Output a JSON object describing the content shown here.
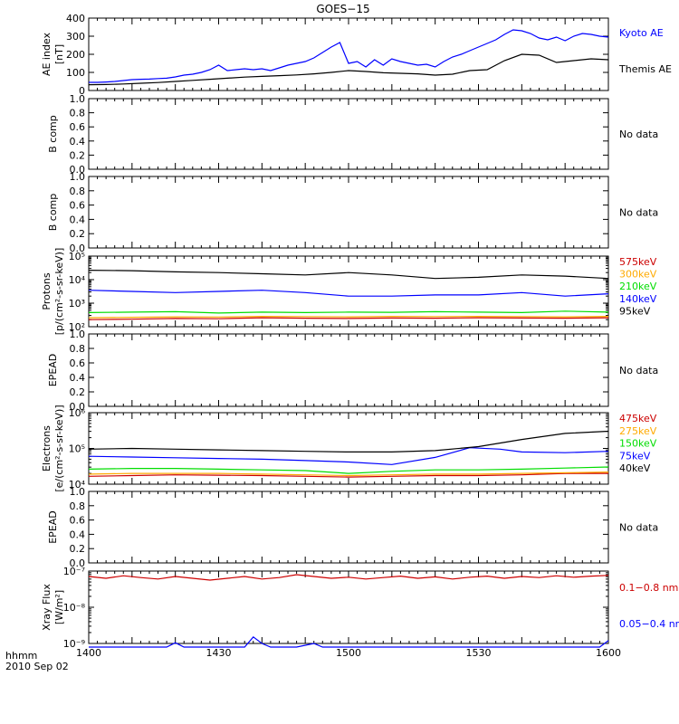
{
  "title": "GOES−15",
  "xaxis": {
    "label_unit": "hhmm",
    "date": "2010 Sep 02",
    "range": [
      0,
      120
    ],
    "ticks": [
      {
        "v": 0,
        "label": "1400"
      },
      {
        "v": 30,
        "label": "1430"
      },
      {
        "v": 60,
        "label": "1500"
      },
      {
        "v": 90,
        "label": "1530"
      },
      {
        "v": 120,
        "label": "1600"
      }
    ]
  },
  "chart_data": [
    {
      "type": "line",
      "ylabel": [
        "AE index",
        "[nT]"
      ],
      "ylim": [
        0,
        400
      ],
      "yticks": [
        "0",
        "100",
        "200",
        "300",
        "400"
      ],
      "series": [
        {
          "name": "Kyoto AE",
          "color": "#0000ff",
          "x": [
            0,
            2,
            4,
            6,
            8,
            10,
            12,
            14,
            16,
            18,
            20,
            22,
            24,
            26,
            28,
            30,
            32,
            34,
            36,
            38,
            40,
            42,
            44,
            46,
            48,
            50,
            52,
            54,
            56,
            58,
            60,
            62,
            64,
            66,
            68,
            70,
            72,
            74,
            76,
            78,
            80,
            82,
            84,
            86,
            88,
            90,
            92,
            94,
            96,
            98,
            100,
            102,
            104,
            106,
            108,
            110,
            112,
            114,
            116,
            118,
            120
          ],
          "y": [
            45,
            45,
            47,
            50,
            55,
            60,
            62,
            63,
            66,
            68,
            75,
            85,
            90,
            100,
            115,
            140,
            110,
            115,
            120,
            115,
            120,
            110,
            125,
            140,
            150,
            160,
            180,
            210,
            240,
            265,
            150,
            160,
            130,
            170,
            140,
            175,
            160,
            150,
            140,
            145,
            130,
            160,
            185,
            200,
            220,
            240,
            260,
            280,
            310,
            335,
            330,
            315,
            290,
            280,
            295,
            275,
            300,
            315,
            310,
            300,
            295
          ]
        },
        {
          "name": "Themis AE",
          "color": "#000000",
          "x": [
            0,
            4,
            8,
            12,
            16,
            20,
            24,
            28,
            32,
            36,
            40,
            44,
            48,
            52,
            56,
            60,
            64,
            68,
            72,
            76,
            80,
            84,
            88,
            92,
            96,
            100,
            104,
            108,
            112,
            116,
            120
          ],
          "y": [
            32,
            33,
            36,
            40,
            44,
            50,
            56,
            62,
            68,
            74,
            78,
            82,
            86,
            92,
            100,
            110,
            105,
            98,
            95,
            92,
            85,
            90,
            110,
            115,
            165,
            200,
            195,
            155,
            165,
            175,
            170
          ]
        }
      ]
    },
    {
      "type": "line",
      "ylabel": [
        "B comp"
      ],
      "ylim": [
        0,
        1
      ],
      "yticks": [
        "0.0",
        "0.2",
        "0.4",
        "0.6",
        "0.8",
        "1.0"
      ],
      "note": "No data",
      "series": []
    },
    {
      "type": "line",
      "ylabel": [
        "B comp"
      ],
      "ylim": [
        0,
        1
      ],
      "yticks": [
        "0.0",
        "0.2",
        "0.4",
        "0.6",
        "0.8",
        "1.0"
      ],
      "note": "No data",
      "series": []
    },
    {
      "type": "line",
      "scale": "log",
      "ylabel": [
        "Protons",
        "[p/(cm²-s-sr-keV)]"
      ],
      "ylim_exp": [
        2,
        5
      ],
      "yticks": [
        "10²",
        "10³",
        "10⁴",
        "10⁵"
      ],
      "series": [
        {
          "name": "575keV",
          "color": "#cc0000",
          "x": [
            0,
            10,
            20,
            30,
            40,
            50,
            60,
            70,
            80,
            90,
            100,
            110,
            120
          ],
          "y": [
            2.3,
            2.32,
            2.35,
            2.34,
            2.38,
            2.36,
            2.35,
            2.37,
            2.36,
            2.38,
            2.37,
            2.36,
            2.38
          ]
        },
        {
          "name": "300keV",
          "color": "#ffaa00",
          "x": [
            0,
            10,
            20,
            30,
            40,
            50,
            60,
            70,
            80,
            90,
            100,
            110,
            120
          ],
          "y": [
            2.38,
            2.4,
            2.42,
            2.41,
            2.44,
            2.43,
            2.42,
            2.44,
            2.43,
            2.44,
            2.43,
            2.42,
            2.44
          ]
        },
        {
          "name": "210keV",
          "color": "#00dd00",
          "x": [
            0,
            10,
            20,
            30,
            40,
            50,
            60,
            70,
            80,
            90,
            100,
            110,
            120
          ],
          "y": [
            2.6,
            2.62,
            2.64,
            2.58,
            2.62,
            2.6,
            2.62,
            2.61,
            2.64,
            2.62,
            2.6,
            2.66,
            2.62
          ]
        },
        {
          "name": "140keV",
          "color": "#0000ff",
          "x": [
            0,
            10,
            20,
            30,
            40,
            50,
            60,
            70,
            80,
            90,
            100,
            110,
            120
          ],
          "y": [
            3.55,
            3.5,
            3.45,
            3.5,
            3.55,
            3.45,
            3.3,
            3.3,
            3.35,
            3.35,
            3.45,
            3.3,
            3.4
          ]
        },
        {
          "name": "95keV",
          "color": "#000000",
          "x": [
            0,
            10,
            20,
            30,
            40,
            50,
            60,
            70,
            80,
            90,
            100,
            110,
            120
          ],
          "y": [
            4.4,
            4.38,
            4.33,
            4.3,
            4.25,
            4.2,
            4.3,
            4.2,
            4.05,
            4.1,
            4.2,
            4.15,
            4.05
          ]
        }
      ]
    },
    {
      "type": "line",
      "ylabel": [
        "EPEAD"
      ],
      "ylim": [
        0,
        1
      ],
      "yticks": [
        "0.0",
        "0.2",
        "0.4",
        "0.6",
        "0.8",
        "1.0"
      ],
      "note": "No data",
      "series": []
    },
    {
      "type": "line",
      "scale": "log",
      "ylabel": [
        "Electrons",
        "[e/(cm²-s-sr-keV)]"
      ],
      "ylim_exp": [
        4,
        6
      ],
      "yticks": [
        "10⁴",
        "10⁵",
        "10⁶"
      ],
      "series": [
        {
          "name": "475keV",
          "color": "#cc0000",
          "x": [
            0,
            10,
            20,
            30,
            40,
            50,
            60,
            70,
            80,
            90,
            100,
            110,
            120
          ],
          "y": [
            4.22,
            4.24,
            4.26,
            4.25,
            4.24,
            4.22,
            4.2,
            4.22,
            4.24,
            4.24,
            4.26,
            4.3,
            4.3
          ]
        },
        {
          "name": "275keV",
          "color": "#ffaa00",
          "x": [
            0,
            10,
            20,
            30,
            40,
            50,
            60,
            70,
            80,
            90,
            100,
            110,
            120
          ],
          "y": [
            4.28,
            4.3,
            4.3,
            4.3,
            4.28,
            4.26,
            4.24,
            4.26,
            4.28,
            4.28,
            4.3,
            4.32,
            4.34
          ]
        },
        {
          "name": "150keV",
          "color": "#00dd00",
          "x": [
            0,
            10,
            20,
            30,
            40,
            50,
            60,
            70,
            80,
            90,
            100,
            110,
            120
          ],
          "y": [
            4.42,
            4.44,
            4.44,
            4.42,
            4.4,
            4.38,
            4.3,
            4.36,
            4.4,
            4.4,
            4.42,
            4.45,
            4.48
          ]
        },
        {
          "name": "75keV",
          "color": "#0000ff",
          "x": [
            0,
            10,
            20,
            30,
            40,
            50,
            60,
            70,
            80,
            88,
            95,
            100,
            110,
            120
          ],
          "y": [
            4.78,
            4.76,
            4.74,
            4.72,
            4.7,
            4.66,
            4.62,
            4.55,
            4.75,
            5.02,
            4.98,
            4.9,
            4.88,
            4.92
          ]
        },
        {
          "name": "40keV",
          "color": "#000000",
          "x": [
            0,
            10,
            20,
            30,
            40,
            50,
            60,
            70,
            80,
            90,
            100,
            110,
            120
          ],
          "y": [
            4.98,
            5.0,
            4.98,
            4.96,
            4.94,
            4.92,
            4.9,
            4.9,
            4.94,
            5.05,
            5.25,
            5.42,
            5.48
          ]
        }
      ]
    },
    {
      "type": "line",
      "ylabel": [
        "EPEAD"
      ],
      "ylim": [
        0,
        1
      ],
      "yticks": [
        "0.0",
        "0.2",
        "0.4",
        "0.6",
        "0.8",
        "1.0"
      ],
      "note": "No data",
      "series": []
    },
    {
      "type": "line",
      "scale": "log",
      "ylabel": [
        "Xray Flux",
        "[W/m²]"
      ],
      "ylim_exp": [
        -9,
        -7
      ],
      "yticks": [
        "10⁻⁹",
        "10⁻⁸",
        "10⁻⁷"
      ],
      "series": [
        {
          "name": "0.1−0.8 nm",
          "color": "#cc0000",
          "x": [
            0,
            4,
            8,
            12,
            16,
            20,
            24,
            28,
            32,
            36,
            40,
            44,
            48,
            52,
            56,
            60,
            64,
            68,
            72,
            76,
            80,
            84,
            88,
            92,
            96,
            100,
            104,
            108,
            112,
            116,
            120
          ],
          "y": [
            -7.15,
            -7.2,
            -7.13,
            -7.18,
            -7.22,
            -7.15,
            -7.2,
            -7.25,
            -7.2,
            -7.15,
            -7.22,
            -7.18,
            -7.1,
            -7.15,
            -7.2,
            -7.17,
            -7.22,
            -7.18,
            -7.14,
            -7.2,
            -7.16,
            -7.22,
            -7.17,
            -7.14,
            -7.2,
            -7.15,
            -7.18,
            -7.13,
            -7.17,
            -7.14,
            -7.12
          ]
        },
        {
          "name": "0.05−0.4 nm",
          "color": "#0000ff",
          "x": [
            0,
            10,
            18,
            20,
            22,
            30,
            36,
            38,
            40,
            42,
            48,
            52,
            54,
            58,
            60,
            70,
            80,
            90,
            100,
            110,
            118,
            120
          ],
          "y": [
            -9.1,
            -9.1,
            -9.1,
            -8.98,
            -9.1,
            -9.1,
            -9.1,
            -8.82,
            -9.0,
            -9.1,
            -9.1,
            -9.0,
            -9.1,
            -9.1,
            -9.1,
            -9.1,
            -9.1,
            -9.1,
            -9.1,
            -9.1,
            -9.1,
            -8.92
          ]
        }
      ]
    }
  ]
}
